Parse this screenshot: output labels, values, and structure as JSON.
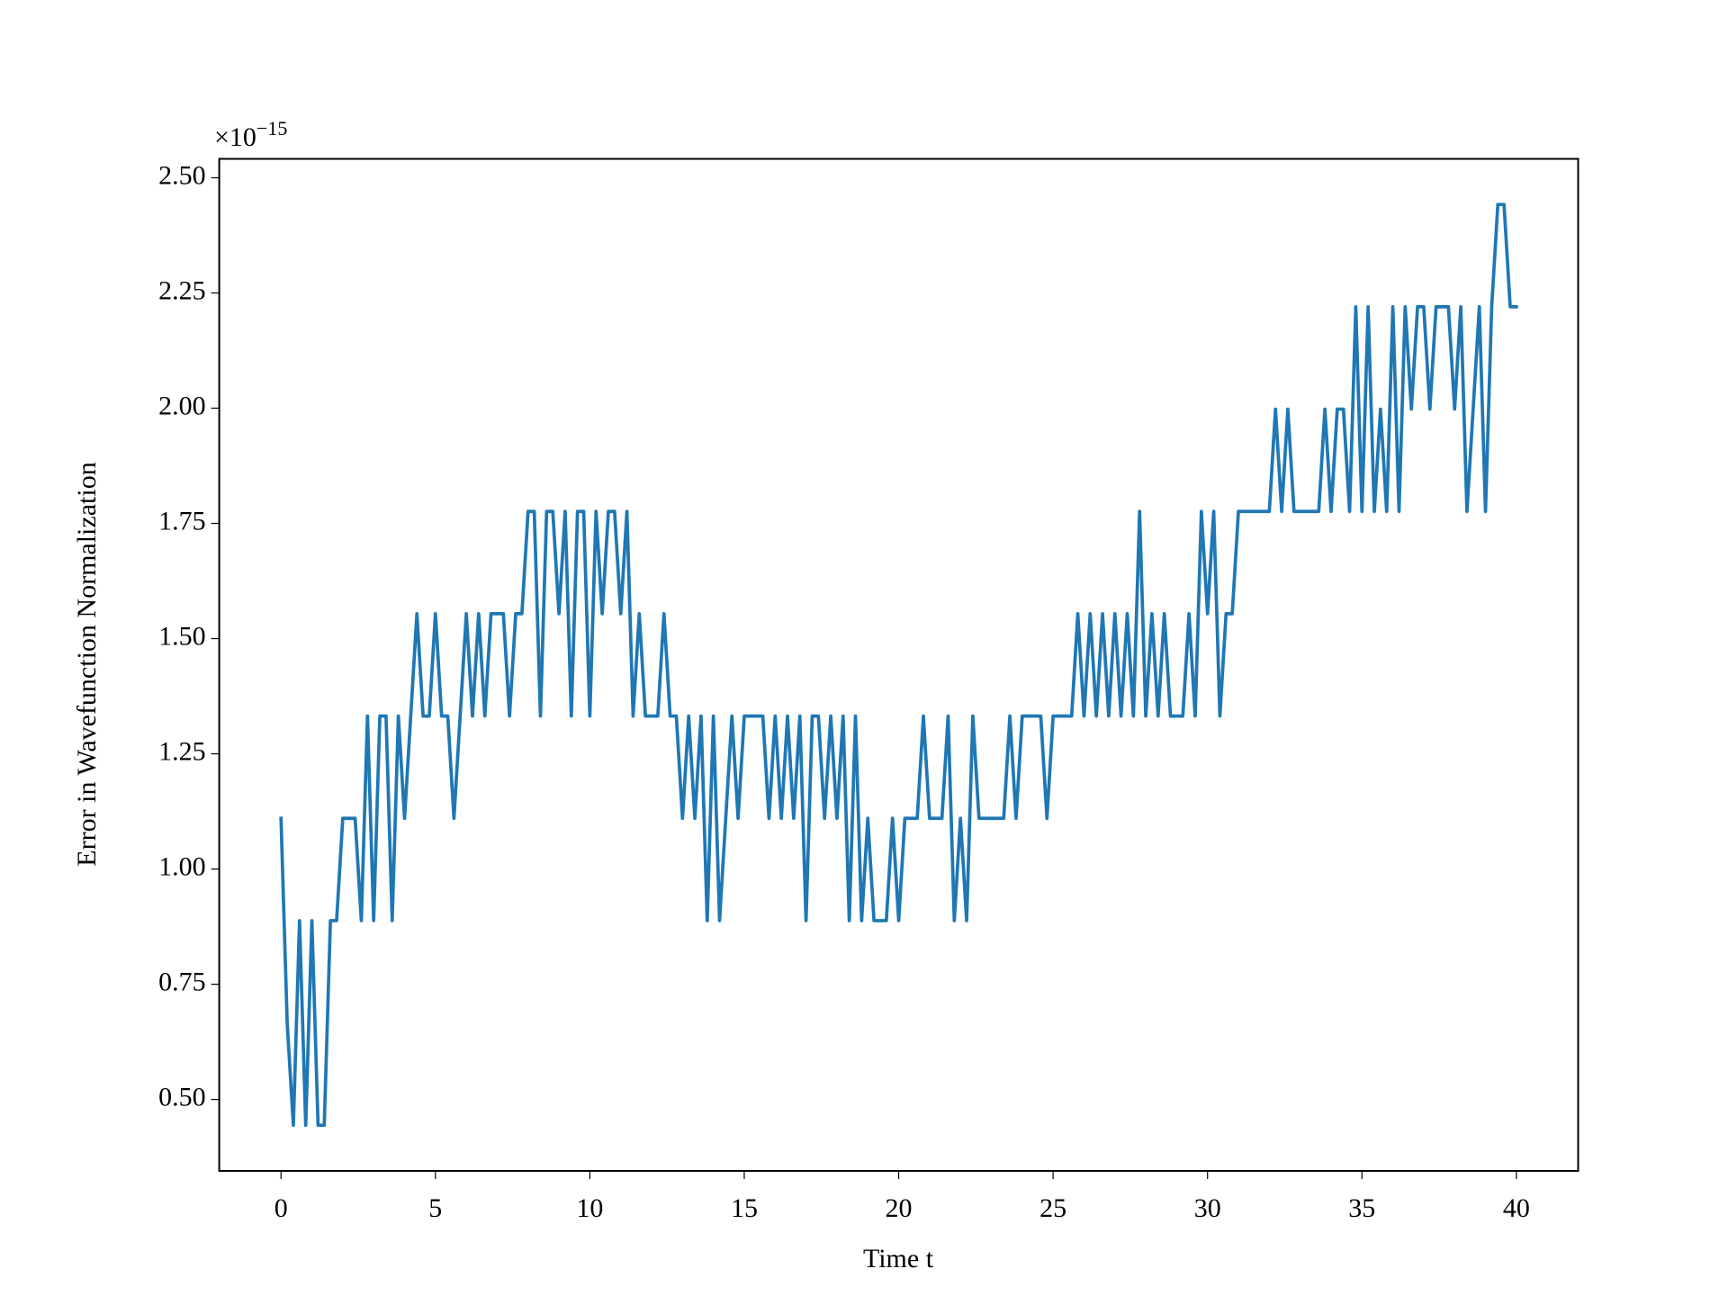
{
  "chart_data": {
    "type": "line",
    "ylabel": "Error in Wavefunction Normalization",
    "xlabel": "Time t",
    "offset_text": {
      "base": "×10",
      "exponent": "−15"
    },
    "xlim": [
      -2,
      42
    ],
    "xticks": [
      0,
      5,
      10,
      15,
      20,
      25,
      30,
      35,
      40
    ],
    "ylim": [
      0.345,
      2.541
    ],
    "yticks": [
      {
        "value": 0.5,
        "label": "0.50"
      },
      0.75,
      {
        "value": 1.0,
        "label": "1.00"
      },
      1.25,
      {
        "value": 1.5,
        "label": "1.50"
      },
      1.75,
      {
        "value": 2.0,
        "label": "2.00"
      },
      2.25,
      {
        "value": 2.5,
        "label": "2.50"
      }
    ],
    "x": [
      0,
      0.2,
      0.4,
      0.6,
      0.8,
      1,
      1.2,
      1.4,
      1.6,
      1.8,
      2,
      2.2,
      2.4,
      2.6,
      2.8,
      3,
      3.2,
      3.4,
      3.6,
      3.8,
      4,
      4.2,
      4.4,
      4.6,
      4.8,
      5,
      5.2,
      5.4,
      5.6,
      5.8,
      6,
      6.2,
      6.4,
      6.6,
      6.8,
      7,
      7.2,
      7.4,
      7.6,
      7.8,
      8,
      8.2,
      8.4,
      8.6,
      8.8,
      9,
      9.2,
      9.4,
      9.6,
      9.8,
      10,
      10.2,
      10.4,
      10.6,
      10.8,
      11,
      11.2,
      11.4,
      11.6,
      11.8,
      12,
      12.2,
      12.4,
      12.6,
      12.8,
      13,
      13.2,
      13.4,
      13.6,
      13.8,
      14,
      14.2,
      14.4,
      14.6,
      14.8,
      15,
      15.2,
      15.4,
      15.6,
      15.8,
      16,
      16.2,
      16.4,
      16.6,
      16.8,
      17,
      17.2,
      17.4,
      17.6,
      17.8,
      18,
      18.2,
      18.4,
      18.6,
      18.8,
      19,
      19.2,
      19.4,
      19.6,
      19.8,
      20,
      20.2,
      20.4,
      20.6,
      20.8,
      21,
      21.2,
      21.4,
      21.6,
      21.8,
      22,
      22.2,
      22.4,
      22.6,
      22.8,
      23,
      23.2,
      23.4,
      23.6,
      23.8,
      24,
      24.2,
      24.4,
      24.6,
      24.8,
      25,
      25.2,
      25.4,
      25.6,
      25.8,
      26,
      26.2,
      26.4,
      26.6,
      26.8,
      27,
      27.2,
      27.4,
      27.6,
      27.8,
      28,
      28.2,
      28.4,
      28.6,
      28.8,
      29,
      29.2,
      29.4,
      29.6,
      29.8,
      30,
      30.2,
      30.4,
      30.6,
      30.8,
      31,
      31.2,
      31.4,
      31.6,
      31.8,
      32,
      32.2,
      32.4,
      32.6,
      32.8,
      33,
      33.2,
      33.4,
      33.6,
      33.8,
      34,
      34.2,
      34.4,
      34.6,
      34.8,
      35,
      35.2,
      35.4,
      35.6,
      35.8,
      36,
      36.2,
      36.4,
      36.6,
      36.8,
      37,
      37.2,
      37.4,
      37.6,
      37.8,
      38,
      38.2,
      38.4,
      38.6,
      38.8,
      39,
      39.2,
      39.4,
      39.6,
      39.8,
      40
    ],
    "series": [
      {
        "color": "#1f77b4",
        "values": [
          1.11,
          0.666,
          0.444,
          0.888,
          0.444,
          0.888,
          0.444,
          0.444,
          0.888,
          0.888,
          1.11,
          1.11,
          1.11,
          0.888,
          1.332,
          0.888,
          1.332,
          1.332,
          0.888,
          1.332,
          1.11,
          1.332,
          1.554,
          1.332,
          1.332,
          1.554,
          1.332,
          1.332,
          1.11,
          1.332,
          1.554,
          1.332,
          1.554,
          1.332,
          1.554,
          1.554,
          1.554,
          1.332,
          1.554,
          1.554,
          1.776,
          1.776,
          1.332,
          1.776,
          1.776,
          1.554,
          1.776,
          1.332,
          1.776,
          1.776,
          1.332,
          1.776,
          1.554,
          1.776,
          1.776,
          1.554,
          1.776,
          1.332,
          1.554,
          1.332,
          1.332,
          1.332,
          1.554,
          1.332,
          1.332,
          1.11,
          1.332,
          1.11,
          1.332,
          0.888,
          1.332,
          0.888,
          1.11,
          1.332,
          1.11,
          1.332,
          1.332,
          1.332,
          1.332,
          1.11,
          1.332,
          1.11,
          1.332,
          1.11,
          1.332,
          0.888,
          1.332,
          1.332,
          1.11,
          1.332,
          1.11,
          1.332,
          0.888,
          1.332,
          0.888,
          1.11,
          0.888,
          0.888,
          0.888,
          1.11,
          0.888,
          1.11,
          1.11,
          1.11,
          1.332,
          1.11,
          1.11,
          1.11,
          1.332,
          0.888,
          1.11,
          0.888,
          1.332,
          1.11,
          1.11,
          1.11,
          1.11,
          1.11,
          1.332,
          1.11,
          1.332,
          1.332,
          1.332,
          1.332,
          1.11,
          1.332,
          1.332,
          1.332,
          1.332,
          1.554,
          1.332,
          1.554,
          1.332,
          1.554,
          1.332,
          1.554,
          1.332,
          1.554,
          1.332,
          1.776,
          1.332,
          1.554,
          1.332,
          1.554,
          1.332,
          1.332,
          1.332,
          1.554,
          1.332,
          1.776,
          1.554,
          1.776,
          1.332,
          1.554,
          1.554,
          1.776,
          1.776,
          1.776,
          1.776,
          1.776,
          1.776,
          1.998,
          1.776,
          1.998,
          1.776,
          1.776,
          1.776,
          1.776,
          1.776,
          1.998,
          1.776,
          1.998,
          1.998,
          1.776,
          2.22,
          1.776,
          2.22,
          1.776,
          1.998,
          1.776,
          2.22,
          1.776,
          2.22,
          1.998,
          2.22,
          2.22,
          1.998,
          2.22,
          2.22,
          2.22,
          1.998,
          2.22,
          1.776,
          1.998,
          2.22,
          1.776,
          2.22,
          2.442,
          2.442,
          2.22,
          2.22
        ]
      }
    ]
  }
}
